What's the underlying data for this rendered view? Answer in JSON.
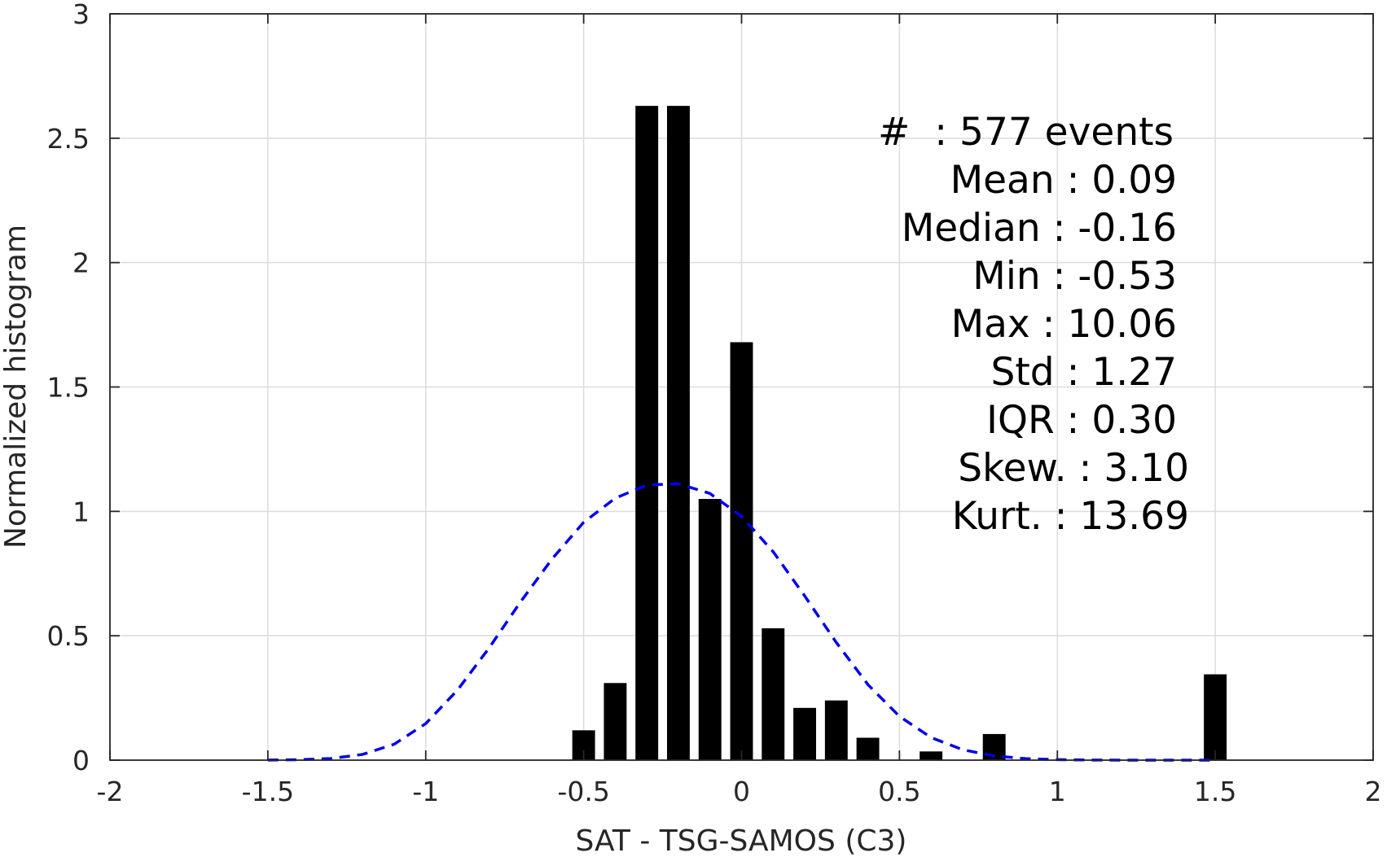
{
  "chart_data": {
    "type": "bar",
    "title": "",
    "xlabel": "SAT - TSG-SAMOS (C3)",
    "ylabel": "Normalized histogram",
    "xlim": [
      -2,
      2
    ],
    "ylim": [
      0,
      3
    ],
    "xticks": [
      -2,
      -1.5,
      -1,
      -0.5,
      0,
      0.5,
      1,
      1.5,
      2
    ],
    "xtick_labels": [
      "-2",
      "-1.5",
      "-1",
      "-0.5",
      "0",
      "0.5",
      "1",
      "1.5",
      "2"
    ],
    "yticks": [
      0,
      0.5,
      1,
      1.5,
      2,
      2.5,
      3
    ],
    "ytick_labels": [
      "0",
      "0.5",
      "1",
      "1.5",
      "2",
      "2.5",
      "3"
    ],
    "grid": true,
    "bar_color": "#000000",
    "bars": {
      "x": [
        -0.5,
        -0.4,
        -0.3,
        -0.2,
        -0.1,
        0.0,
        0.1,
        0.2,
        0.3,
        0.4,
        0.6,
        0.8,
        1.5
      ],
      "values": [
        0.12,
        0.31,
        2.63,
        2.63,
        1.05,
        1.68,
        0.53,
        0.21,
        0.24,
        0.09,
        0.035,
        0.105,
        0.345
      ]
    },
    "fit_curve": {
      "color": "#0000ee",
      "style": "dashed",
      "x": [
        -1.5,
        -1.4,
        -1.3,
        -1.2,
        -1.1,
        -1.0,
        -0.9,
        -0.8,
        -0.7,
        -0.6,
        -0.5,
        -0.4,
        -0.3,
        -0.2,
        -0.1,
        0.0,
        0.1,
        0.2,
        0.3,
        0.4,
        0.5,
        0.6,
        0.7,
        0.8,
        0.9,
        1.0,
        1.1,
        1.2,
        1.3,
        1.4,
        1.5
      ],
      "values": [
        0.0003,
        0.0016,
        0.0067,
        0.023,
        0.064,
        0.147,
        0.281,
        0.45,
        0.636,
        0.809,
        0.956,
        1.053,
        1.106,
        1.111,
        1.072,
        0.98,
        0.838,
        0.66,
        0.473,
        0.304,
        0.176,
        0.091,
        0.042,
        0.017,
        0.006,
        0.002,
        0.0006,
        0.0002,
        0.0001,
        0.0,
        0.0
      ]
    },
    "stats": {
      "count": "#  : 577 events",
      "mean": "Mean : 0.09",
      "median": "Median : -0.16",
      "min": "Min : -0.53",
      "max": "Max : 10.06",
      "std": "Std : 1.27",
      "iqr": "IQR : 0.30",
      "skew": "Skew. : 3.10",
      "kurt": "Kurt. : 13.69"
    }
  }
}
